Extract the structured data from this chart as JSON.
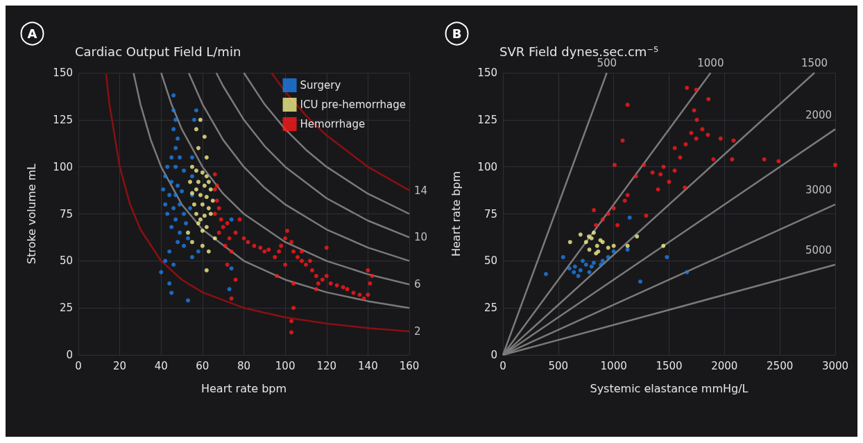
{
  "chart_data": [
    {
      "type": "scatter",
      "title": "Cardiac Output Field L/min",
      "xlabel": "Heart rate bpm",
      "ylabel": "Stroke volume mL",
      "xlim": [
        0,
        160
      ],
      "ylim": [
        0,
        150
      ],
      "xticks": [
        0,
        20,
        40,
        60,
        80,
        100,
        120,
        140,
        160
      ],
      "yticks": [
        0,
        25,
        50,
        75,
        100,
        125,
        150
      ],
      "grid": true,
      "legend": "top right",
      "annotations": [
        "A",
        {
          "text": "2",
          "x": 160,
          "y": 12.5
        },
        {
          "text": "6",
          "x": 160,
          "y": 37.5
        },
        {
          "text": "10",
          "x": 160,
          "y": 62.5
        },
        {
          "text": "14",
          "x": 160,
          "y": 87.5
        }
      ],
      "series": [
        {
          "type": "line",
          "color": "#8b1010",
          "x": [
            13.4,
            15,
            20,
            25,
            30,
            40,
            50,
            60,
            80,
            100,
            120,
            140,
            160
          ],
          "values": [
            149.3,
            133.3,
            100,
            80,
            66.7,
            50,
            40,
            33.3,
            25,
            20,
            16.7,
            14.3,
            12.5
          ]
        },
        {
          "type": "line",
          "color": "#7a7a7a",
          "x": [
            26.7,
            30,
            35,
            40,
            50,
            60,
            80,
            100,
            120,
            140,
            160
          ],
          "values": [
            149.8,
            133.3,
            114.3,
            100,
            80,
            66.7,
            50,
            40,
            33.3,
            28.6,
            25
          ]
        },
        {
          "type": "line",
          "color": "#7a7a7a",
          "x": [
            40,
            45,
            50,
            60,
            70,
            80,
            100,
            120,
            140,
            160
          ],
          "values": [
            150,
            133.3,
            120,
            100,
            85.7,
            75,
            60,
            50,
            42.9,
            37.5
          ]
        },
        {
          "type": "line",
          "color": "#7a7a7a",
          "x": [
            53.4,
            60,
            70,
            80,
            90,
            100,
            120,
            140,
            160
          ],
          "values": [
            149.8,
            133.3,
            114.3,
            100,
            88.9,
            80,
            66.7,
            57.1,
            50
          ]
        },
        {
          "type": "line",
          "color": "#7a7a7a",
          "x": [
            66.7,
            70,
            80,
            90,
            100,
            120,
            140,
            160
          ],
          "values": [
            149.9,
            142.9,
            125,
            111.1,
            100,
            83.3,
            71.4,
            62.5
          ]
        },
        {
          "type": "line",
          "color": "#7a7a7a",
          "x": [
            80,
            90,
            100,
            110,
            120,
            140,
            160
          ],
          "values": [
            150,
            133.3,
            120,
            109.1,
            100,
            85.7,
            75
          ]
        },
        {
          "type": "line",
          "color": "#8b1010",
          "x": [
            93.4,
            100,
            110,
            120,
            140,
            160
          ],
          "values": [
            149.9,
            140,
            127.3,
            116.7,
            100,
            87.5
          ]
        },
        {
          "name": "Surgery",
          "marker": "circle",
          "color": "#1e7fe8",
          "x": [
            46,
            46,
            47,
            46,
            48,
            47,
            45,
            49,
            43,
            47,
            51,
            42,
            45,
            48,
            41,
            44,
            47,
            50,
            42,
            46,
            49,
            43,
            47,
            51,
            45,
            49,
            52,
            48,
            51,
            53,
            55,
            55,
            56,
            57,
            55,
            54,
            44,
            42,
            46,
            40,
            45,
            44,
            53,
            74,
            74,
            73,
            55,
            58
          ],
          "values": [
            138,
            130,
            125,
            120,
            115,
            110,
            105,
            105,
            100,
            100,
            98,
            95,
            92,
            90,
            88,
            85,
            85,
            87,
            80,
            78,
            80,
            75,
            72,
            75,
            68,
            65,
            70,
            60,
            58,
            62,
            95,
            105,
            125,
            130,
            85,
            78,
            55,
            50,
            48,
            44,
            33,
            38,
            29,
            72,
            46,
            35,
            52,
            55
          ]
        },
        {
          "name": "ICU pre-hemorrhage",
          "marker": "circle",
          "color": "#f4f08a",
          "x": [
            55,
            57,
            60,
            62,
            54,
            58,
            61,
            64,
            55,
            59,
            62,
            65,
            56,
            60,
            63,
            57,
            61,
            64,
            58,
            62,
            60,
            59,
            57,
            63,
            58,
            61,
            57,
            59,
            62,
            55,
            60,
            63,
            62,
            66,
            53
          ],
          "values": [
            100,
            98,
            97,
            95,
            92,
            92,
            90,
            88,
            86,
            85,
            84,
            82,
            80,
            80,
            78,
            75,
            74,
            75,
            70,
            68,
            66,
            72,
            88,
            92,
            110,
            116,
            120,
            125,
            105,
            60,
            58,
            55,
            45,
            62,
            65
          ]
        },
        {
          "name": "Hemorrhage",
          "marker": "circle",
          "color": "#ff1a1a",
          "x": [
            66,
            67,
            66,
            67,
            68,
            66,
            69,
            70,
            68,
            72,
            73,
            71,
            74,
            76,
            78,
            80,
            82,
            85,
            88,
            90,
            92,
            95,
            97,
            98,
            100,
            101,
            103,
            104,
            100,
            106,
            108,
            110,
            112,
            113,
            115,
            116,
            115,
            118,
            120,
            122,
            125,
            128,
            130,
            133,
            136,
            138,
            140,
            141,
            142,
            140,
            120,
            104,
            104,
            103,
            103,
            76,
            74,
            72,
            96,
            108
          ],
          "values": [
            96,
            90,
            88,
            82,
            78,
            75,
            72,
            68,
            65,
            70,
            62,
            58,
            55,
            65,
            72,
            62,
            60,
            58,
            57,
            55,
            56,
            52,
            55,
            58,
            62,
            66,
            60,
            55,
            48,
            52,
            50,
            48,
            50,
            45,
            42,
            38,
            35,
            40,
            42,
            38,
            37,
            36,
            35,
            33,
            32,
            30,
            32,
            38,
            42,
            45,
            57,
            38,
            25,
            18,
            12,
            40,
            30,
            48,
            42,
            55
          ]
        }
      ]
    },
    {
      "type": "scatter",
      "title": "SVR Field dynes.sec.cm⁻⁵",
      "xlabel": "Systemic elastance mmHg/L",
      "ylabel": "Heart rate bpm",
      "xlim": [
        0,
        3000
      ],
      "ylim": [
        0,
        150
      ],
      "xticks": [
        0,
        500,
        1000,
        1500,
        2000,
        2500,
        3000
      ],
      "yticks": [
        0,
        25,
        50,
        75,
        100,
        125,
        150
      ],
      "grid": true,
      "annotations": [
        "B",
        {
          "text": "500",
          "x": 937.5,
          "y": 150
        },
        {
          "text": "1000",
          "x": 1875,
          "y": 150
        },
        {
          "text": "1500",
          "x": 2812.5,
          "y": 150
        },
        {
          "text": "2000",
          "x": 3000,
          "y": 120
        },
        {
          "text": "3000",
          "x": 3000,
          "y": 80
        },
        {
          "text": "5000",
          "x": 3000,
          "y": 48
        }
      ],
      "series": [
        {
          "type": "line",
          "color": "#7a7a7a",
          "x": [
            0,
            937.5
          ],
          "values": [
            0,
            150
          ]
        },
        {
          "type": "line",
          "color": "#7a7a7a",
          "x": [
            0,
            1875
          ],
          "values": [
            0,
            150
          ]
        },
        {
          "type": "line",
          "color": "#7a7a7a",
          "x": [
            0,
            2812.5
          ],
          "values": [
            0,
            150
          ]
        },
        {
          "type": "line",
          "color": "#7a7a7a",
          "x": [
            0,
            3000
          ],
          "values": [
            0,
            120
          ]
        },
        {
          "type": "line",
          "color": "#7a7a7a",
          "x": [
            0,
            3000
          ],
          "values": [
            0,
            80
          ]
        },
        {
          "type": "line",
          "color": "#7a7a7a",
          "x": [
            0,
            3000
          ],
          "values": [
            0,
            48
          ]
        },
        {
          "marker": "circle",
          "color": "#1e7fe8",
          "x": [
            388,
            640,
            885,
            1125,
            1144,
            1480,
            1661,
            1240,
            543,
            600,
            700,
            750,
            800,
            680,
            720,
            820,
            900,
            950,
            1000,
            650,
            780
          ],
          "values": [
            43,
            44,
            48,
            56,
            73,
            52,
            44,
            39,
            52,
            46,
            45,
            48,
            47,
            42,
            50,
            49,
            50,
            52,
            55,
            47,
            44
          ]
        },
        {
          "marker": "circle",
          "color": "#f4f08a",
          "x": [
            606,
            776,
            840,
            1125,
            1210,
            1448,
            750,
            800,
            850,
            900,
            950,
            820,
            780,
            880,
            700,
            1000,
            860
          ],
          "values": [
            60,
            63,
            54,
            58,
            63,
            58,
            60,
            62,
            58,
            60,
            57,
            65,
            56,
            61,
            64,
            58,
            55
          ]
        },
        {
          "marker": "circle",
          "color": "#ff1a1a",
          "x": [
            840,
            821,
            1125,
            1273,
            1422,
            1642,
            1551,
            1745,
            1965,
            2082,
            1726,
            1745,
            1661,
            1855,
            1125,
            1080,
            1008,
            2359,
            2488,
            3000,
            2069,
            1900,
            1293,
            1034,
            900,
            950,
            1000,
            1100,
            1200,
            1350,
            1450,
            1500,
            1600,
            1700,
            1800,
            1850,
            1750,
            1650,
            1550,
            1400
          ],
          "values": [
            69,
            77,
            85,
            101,
            96,
            89,
            110,
            115,
            115,
            114,
            130,
            141,
            142,
            136,
            133,
            114,
            101,
            104,
            103,
            101,
            104,
            104,
            74,
            69,
            72,
            75,
            78,
            82,
            95,
            97,
            100,
            92,
            105,
            118,
            120,
            117,
            125,
            112,
            98,
            88
          ]
        }
      ]
    }
  ]
}
